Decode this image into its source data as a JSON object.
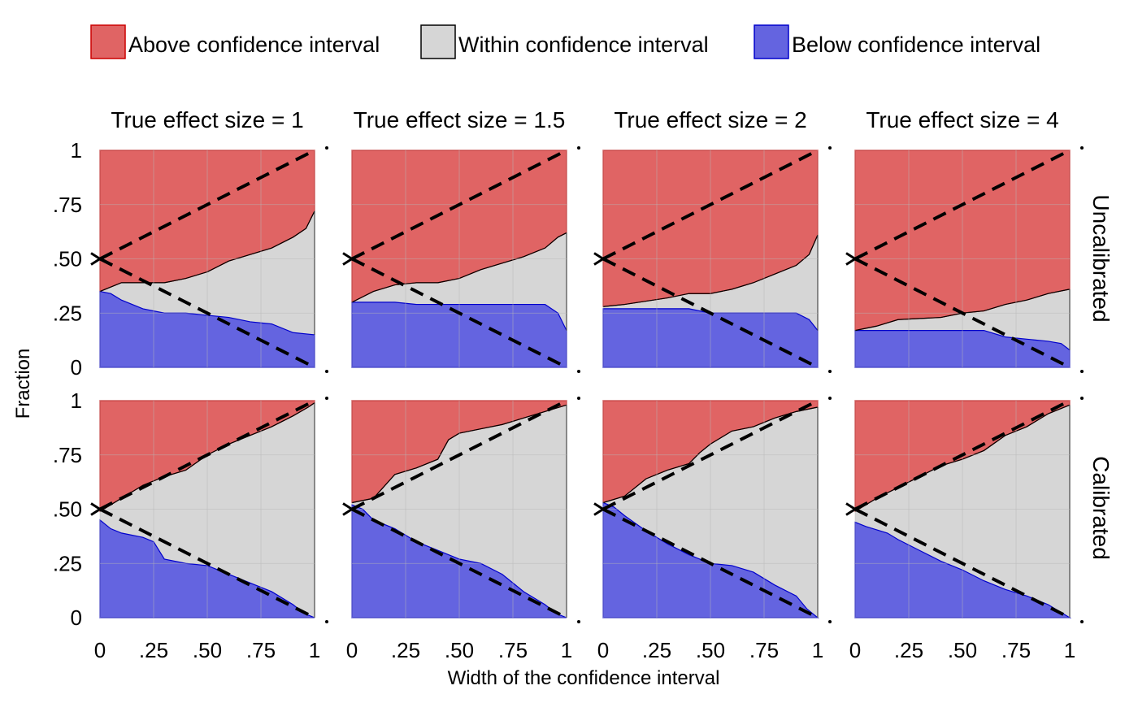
{
  "colors": {
    "above_fill": "#e06464",
    "above_line": "#cc0000",
    "within_fill": "#d6d6d6",
    "below_fill": "#6464e0",
    "below_line": "#0000cc",
    "grid": "#b8b8b8",
    "reference": "#000000"
  },
  "legend": {
    "above": "Above confidence interval",
    "within": "Within confidence interval",
    "below": "Below confidence interval"
  },
  "chart_data": {
    "type": "area",
    "xlabel": "Width of the confidence interval",
    "ylabel": "Fraction",
    "xlim": [
      0,
      1
    ],
    "ylim": [
      0,
      1
    ],
    "x_ticks": [
      "0",
      ".25",
      ".50",
      ".75",
      "1"
    ],
    "y_ticks": [
      "0",
      ".25",
      ".50",
      ".75",
      "1"
    ],
    "grid": true,
    "legend_position": "top",
    "reference_lines": "dashed lines from (0, .50) to (1, 1) and to (1, 0)",
    "columns": [
      "True effect size = 1",
      "True effect size = 1.5",
      "True effect size = 2",
      "True effect size = 4"
    ],
    "rows": [
      "Uncalibrated",
      "Calibrated"
    ],
    "panels": [
      {
        "row": 0,
        "col": 0,
        "below": [
          [
            0,
            0.35
          ],
          [
            0.05,
            0.34
          ],
          [
            0.1,
            0.31
          ],
          [
            0.2,
            0.27
          ],
          [
            0.3,
            0.25
          ],
          [
            0.4,
            0.25
          ],
          [
            0.5,
            0.24
          ],
          [
            0.6,
            0.23
          ],
          [
            0.7,
            0.21
          ],
          [
            0.8,
            0.2
          ],
          [
            0.9,
            0.16
          ],
          [
            1,
            0.15
          ]
        ],
        "upper": [
          [
            0,
            0.35
          ],
          [
            0.05,
            0.37
          ],
          [
            0.1,
            0.39
          ],
          [
            0.2,
            0.39
          ],
          [
            0.3,
            0.39
          ],
          [
            0.4,
            0.41
          ],
          [
            0.5,
            0.44
          ],
          [
            0.6,
            0.49
          ],
          [
            0.7,
            0.52
          ],
          [
            0.8,
            0.55
          ],
          [
            0.9,
            0.6
          ],
          [
            0.96,
            0.64
          ],
          [
            1,
            0.72
          ]
        ]
      },
      {
        "row": 0,
        "col": 1,
        "below": [
          [
            0,
            0.3
          ],
          [
            0.2,
            0.3
          ],
          [
            0.3,
            0.29
          ],
          [
            0.4,
            0.29
          ],
          [
            0.6,
            0.29
          ],
          [
            0.9,
            0.29
          ],
          [
            0.96,
            0.25
          ],
          [
            1,
            0.17
          ]
        ],
        "upper": [
          [
            0,
            0.3
          ],
          [
            0.1,
            0.35
          ],
          [
            0.2,
            0.38
          ],
          [
            0.3,
            0.39
          ],
          [
            0.4,
            0.39
          ],
          [
            0.5,
            0.41
          ],
          [
            0.6,
            0.45
          ],
          [
            0.7,
            0.48
          ],
          [
            0.8,
            0.51
          ],
          [
            0.9,
            0.55
          ],
          [
            0.96,
            0.6
          ],
          [
            1,
            0.62
          ]
        ]
      },
      {
        "row": 0,
        "col": 2,
        "below": [
          [
            0,
            0.27
          ],
          [
            0.2,
            0.27
          ],
          [
            0.4,
            0.27
          ],
          [
            0.5,
            0.25
          ],
          [
            0.7,
            0.25
          ],
          [
            0.9,
            0.25
          ],
          [
            0.96,
            0.22
          ],
          [
            1,
            0.17
          ]
        ],
        "upper": [
          [
            0,
            0.28
          ],
          [
            0.1,
            0.29
          ],
          [
            0.3,
            0.32
          ],
          [
            0.4,
            0.34
          ],
          [
            0.5,
            0.34
          ],
          [
            0.6,
            0.36
          ],
          [
            0.7,
            0.39
          ],
          [
            0.8,
            0.43
          ],
          [
            0.9,
            0.47
          ],
          [
            0.96,
            0.52
          ],
          [
            1,
            0.61
          ]
        ]
      },
      {
        "row": 0,
        "col": 3,
        "below": [
          [
            0,
            0.17
          ],
          [
            0.5,
            0.17
          ],
          [
            0.6,
            0.17
          ],
          [
            0.7,
            0.14
          ],
          [
            0.8,
            0.13
          ],
          [
            0.9,
            0.12
          ],
          [
            0.96,
            0.11
          ],
          [
            1,
            0.08
          ]
        ],
        "upper": [
          [
            0,
            0.17
          ],
          [
            0.1,
            0.19
          ],
          [
            0.2,
            0.22
          ],
          [
            0.4,
            0.23
          ],
          [
            0.5,
            0.25
          ],
          [
            0.6,
            0.26
          ],
          [
            0.7,
            0.29
          ],
          [
            0.8,
            0.31
          ],
          [
            0.9,
            0.34
          ],
          [
            1,
            0.36
          ]
        ]
      },
      {
        "row": 1,
        "col": 0,
        "below": [
          [
            0,
            0.45
          ],
          [
            0.05,
            0.41
          ],
          [
            0.1,
            0.39
          ],
          [
            0.2,
            0.37
          ],
          [
            0.25,
            0.35
          ],
          [
            0.3,
            0.27
          ],
          [
            0.4,
            0.25
          ],
          [
            0.5,
            0.24
          ],
          [
            0.6,
            0.2
          ],
          [
            0.7,
            0.16
          ],
          [
            0.8,
            0.12
          ],
          [
            0.9,
            0.06
          ],
          [
            0.95,
            0.02
          ],
          [
            1,
            0
          ]
        ],
        "upper": [
          [
            0,
            0.49
          ],
          [
            0.1,
            0.55
          ],
          [
            0.2,
            0.61
          ],
          [
            0.3,
            0.65
          ],
          [
            0.4,
            0.68
          ],
          [
            0.5,
            0.75
          ],
          [
            0.6,
            0.8
          ],
          [
            0.7,
            0.84
          ],
          [
            0.8,
            0.88
          ],
          [
            0.9,
            0.93
          ],
          [
            0.97,
            0.97
          ],
          [
            1,
            0.99
          ]
        ]
      },
      {
        "row": 1,
        "col": 1,
        "below": [
          [
            0,
            0.52
          ],
          [
            0.05,
            0.5
          ],
          [
            0.1,
            0.45
          ],
          [
            0.2,
            0.41
          ],
          [
            0.3,
            0.35
          ],
          [
            0.4,
            0.31
          ],
          [
            0.5,
            0.27
          ],
          [
            0.6,
            0.25
          ],
          [
            0.7,
            0.2
          ],
          [
            0.8,
            0.12
          ],
          [
            0.9,
            0.06
          ],
          [
            0.95,
            0.02
          ],
          [
            1,
            0
          ]
        ],
        "upper": [
          [
            0,
            0.53
          ],
          [
            0.1,
            0.55
          ],
          [
            0.2,
            0.66
          ],
          [
            0.3,
            0.69
          ],
          [
            0.4,
            0.73
          ],
          [
            0.45,
            0.82
          ],
          [
            0.5,
            0.85
          ],
          [
            0.6,
            0.87
          ],
          [
            0.7,
            0.89
          ],
          [
            0.8,
            0.92
          ],
          [
            0.9,
            0.95
          ],
          [
            1,
            0.98
          ]
        ]
      },
      {
        "row": 1,
        "col": 2,
        "below": [
          [
            0,
            0.53
          ],
          [
            0.05,
            0.51
          ],
          [
            0.1,
            0.47
          ],
          [
            0.2,
            0.4
          ],
          [
            0.3,
            0.34
          ],
          [
            0.4,
            0.29
          ],
          [
            0.5,
            0.25
          ],
          [
            0.6,
            0.24
          ],
          [
            0.7,
            0.21
          ],
          [
            0.8,
            0.15
          ],
          [
            0.9,
            0.1
          ],
          [
            0.95,
            0.04
          ],
          [
            1,
            0
          ]
        ],
        "upper": [
          [
            0,
            0.53
          ],
          [
            0.1,
            0.56
          ],
          [
            0.2,
            0.64
          ],
          [
            0.3,
            0.68
          ],
          [
            0.4,
            0.71
          ],
          [
            0.45,
            0.76
          ],
          [
            0.5,
            0.8
          ],
          [
            0.6,
            0.86
          ],
          [
            0.7,
            0.88
          ],
          [
            0.8,
            0.92
          ],
          [
            0.9,
            0.95
          ],
          [
            1,
            0.97
          ]
        ]
      },
      {
        "row": 1,
        "col": 3,
        "below": [
          [
            0,
            0.44
          ],
          [
            0.05,
            0.42
          ],
          [
            0.15,
            0.39
          ],
          [
            0.2,
            0.36
          ],
          [
            0.3,
            0.31
          ],
          [
            0.4,
            0.26
          ],
          [
            0.5,
            0.22
          ],
          [
            0.6,
            0.17
          ],
          [
            0.7,
            0.13
          ],
          [
            0.8,
            0.1
          ],
          [
            0.9,
            0.06
          ],
          [
            0.95,
            0.03
          ],
          [
            1,
            0
          ]
        ],
        "upper": [
          [
            0,
            0.49
          ],
          [
            0.1,
            0.55
          ],
          [
            0.2,
            0.6
          ],
          [
            0.3,
            0.65
          ],
          [
            0.4,
            0.7
          ],
          [
            0.5,
            0.73
          ],
          [
            0.6,
            0.77
          ],
          [
            0.7,
            0.84
          ],
          [
            0.8,
            0.88
          ],
          [
            0.9,
            0.94
          ],
          [
            1,
            0.98
          ]
        ]
      }
    ]
  }
}
